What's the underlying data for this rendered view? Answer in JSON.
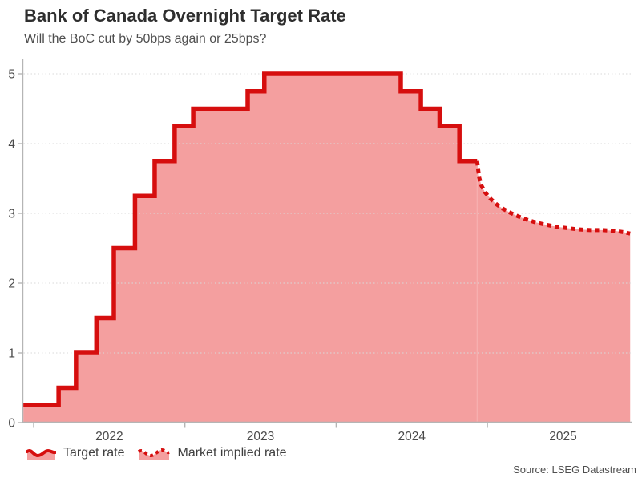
{
  "header": {
    "title": "Bank of Canada Overnight Target Rate",
    "subtitle": "Will the BoC cut by 50bps again or 25bps?"
  },
  "legend": {
    "items": [
      {
        "label": "Target rate",
        "style": "solid"
      },
      {
        "label": "Market implied rate",
        "style": "dotted"
      }
    ]
  },
  "source": "Source: LSEG Datastream",
  "colors": {
    "line_red": "#d60e0e",
    "fill_pink": "#f49f9f",
    "seam_pink": "#f8b4b4",
    "axis_gray": "#b5b5b5",
    "grid_gray": "#d9d9d9",
    "tick_text": "#4a4a4a"
  },
  "chart_data": {
    "type": "area",
    "title": "Bank of Canada Overnight Target Rate",
    "subtitle": "Will the BoC cut by 50bps again or 25bps?",
    "xlabel": "",
    "ylabel": "",
    "ylim": [
      0,
      5.22
    ],
    "xlim": [
      2021.93,
      2025.96
    ],
    "grid": "horizontal-dotted",
    "legend_position": "bottom-left",
    "yticks": [
      0,
      1,
      2,
      3,
      4,
      5
    ],
    "xticks": [
      2022,
      2023,
      2024,
      2025
    ],
    "series": [
      {
        "name": "Target rate",
        "type": "step-after",
        "line": "solid",
        "points": [
          [
            2021.932,
            0.25
          ],
          [
            2022.165,
            0.5
          ],
          [
            2022.28,
            1.0
          ],
          [
            2022.415,
            1.5
          ],
          [
            2022.53,
            2.5
          ],
          [
            2022.67,
            3.25
          ],
          [
            2022.8,
            3.75
          ],
          [
            2022.932,
            4.25
          ],
          [
            2023.055,
            4.5
          ],
          [
            2023.415,
            4.75
          ],
          [
            2023.525,
            5.0
          ],
          [
            2024.427,
            4.75
          ],
          [
            2024.56,
            4.5
          ],
          [
            2024.684,
            4.25
          ],
          [
            2024.815,
            3.75
          ],
          [
            2024.932,
            3.75
          ]
        ]
      },
      {
        "name": "Market implied rate",
        "type": "line",
        "line": "dotted",
        "points": [
          [
            2024.932,
            3.75
          ],
          [
            2024.945,
            3.52
          ],
          [
            2024.96,
            3.4
          ],
          [
            2024.985,
            3.3
          ],
          [
            2025.02,
            3.21
          ],
          [
            2025.06,
            3.13
          ],
          [
            2025.1,
            3.07
          ],
          [
            2025.15,
            3.01
          ],
          [
            2025.2,
            2.96
          ],
          [
            2025.26,
            2.91
          ],
          [
            2025.32,
            2.87
          ],
          [
            2025.38,
            2.84
          ],
          [
            2025.45,
            2.81
          ],
          [
            2025.52,
            2.79
          ],
          [
            2025.6,
            2.77
          ],
          [
            2025.68,
            2.76
          ],
          [
            2025.76,
            2.76
          ],
          [
            2025.84,
            2.75
          ],
          [
            2025.9,
            2.73
          ],
          [
            2025.944,
            2.71
          ]
        ]
      }
    ]
  }
}
